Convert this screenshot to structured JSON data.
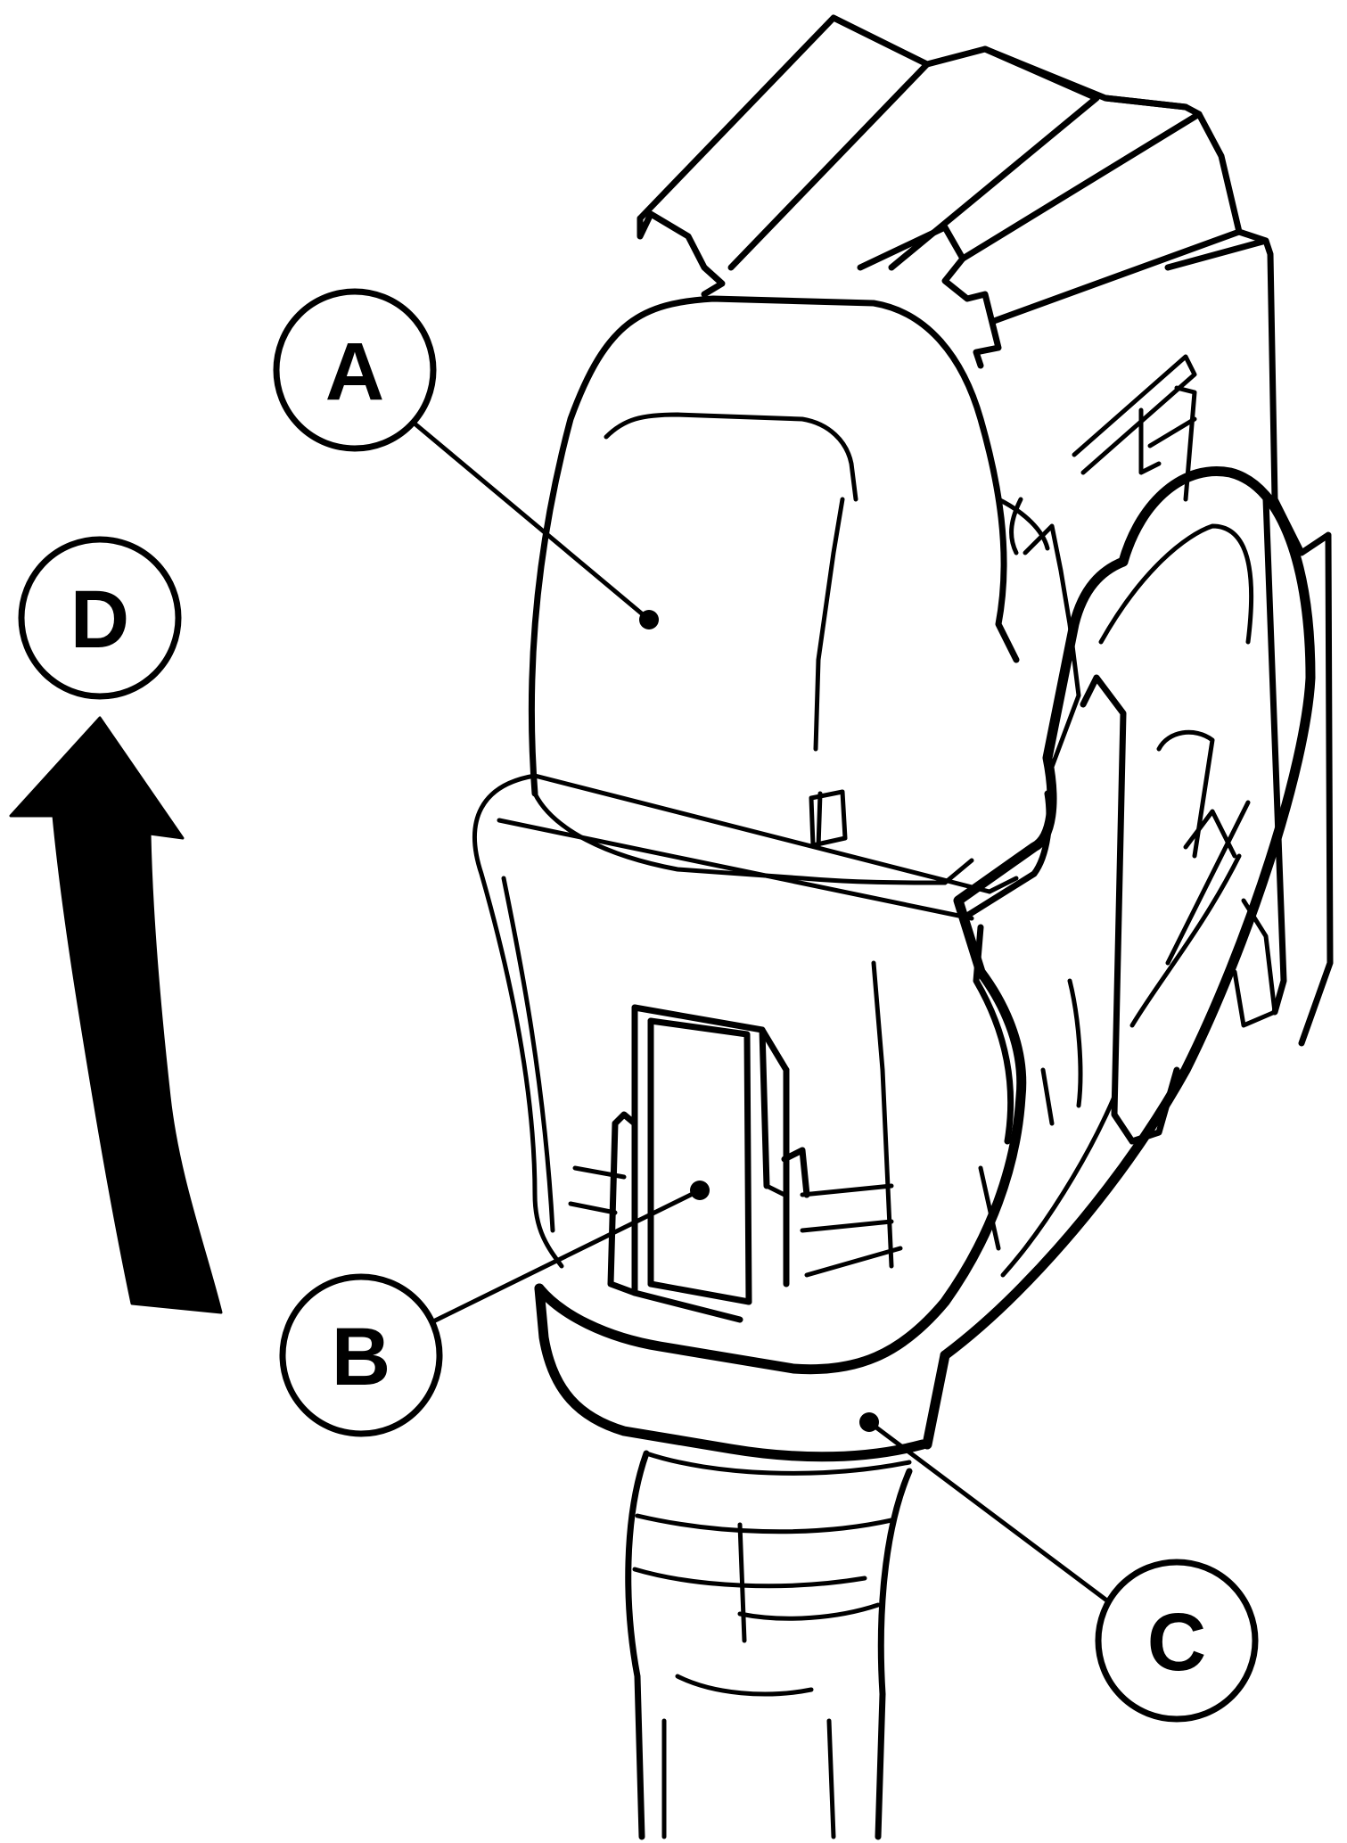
{
  "diagram": {
    "callouts": [
      {
        "id": "A",
        "letter": "A"
      },
      {
        "id": "B",
        "letter": "B"
      },
      {
        "id": "C",
        "letter": "C"
      },
      {
        "id": "D",
        "letter": "D"
      }
    ]
  },
  "colors": {
    "line": "#000000",
    "background": "#ffffff"
  }
}
